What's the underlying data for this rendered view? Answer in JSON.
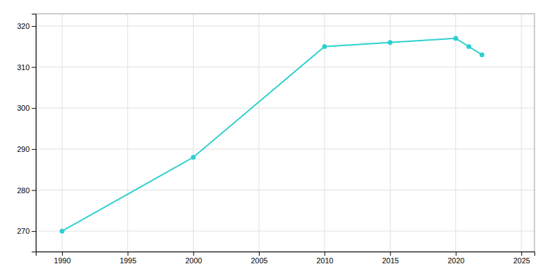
{
  "chart_data": {
    "type": "line",
    "x": [
      1990,
      2000,
      2010,
      2015,
      2020,
      2021,
      2022
    ],
    "values": [
      270,
      288,
      315,
      316,
      317,
      315,
      313
    ],
    "color": "#2dcfcf",
    "marker": "circle",
    "xlim": [
      1988,
      2026
    ],
    "ylim": [
      265,
      323
    ],
    "xticks": [
      1990,
      1995,
      2000,
      2005,
      2010,
      2015,
      2020,
      2025
    ],
    "yticks": [
      270,
      280,
      290,
      300,
      310,
      320
    ],
    "grid": true
  }
}
